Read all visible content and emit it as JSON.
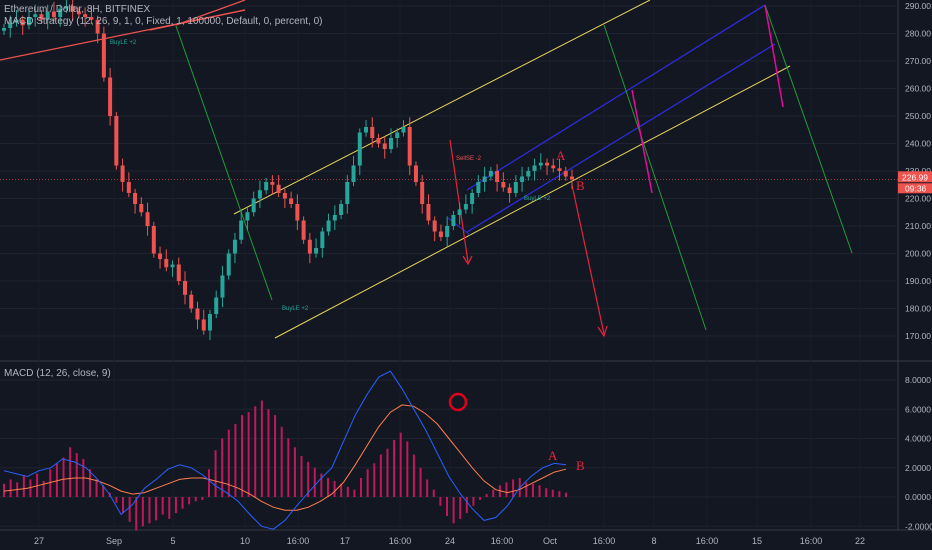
{
  "header": {
    "symbol_line": "Ethereum / Dollar, 8H, BITFINEX",
    "strategy_line": "MACD Strategy (12, 26, 9, 1, 0, Fixed, 1, 100000, Default, 0, percent, 0)",
    "macd_line": "MACD (12, 26, close, 9)"
  },
  "price_badges": {
    "last_price": "226.99",
    "countdown": "09:36"
  },
  "chart_data": [
    {
      "type": "candlestick",
      "title": "Ethereum / Dollar, 8H, BITFINEX",
      "y_ticks": [
        "290.00",
        "280.00",
        "270.00",
        "260.00",
        "250.00",
        "240.00",
        "230.00",
        "220.00",
        "210.00",
        "200.00",
        "190.00",
        "180.00",
        "170.00"
      ],
      "x_ticks": [
        "27",
        "Sep",
        "5",
        "10",
        "16:00",
        "17",
        "16:00",
        "24",
        "16:00",
        "Oct",
        "16:00",
        "8",
        "16:00",
        "15",
        "16:00",
        "22"
      ],
      "ylim": [
        165,
        292
      ],
      "close_series": [
        282,
        284,
        285,
        283,
        286,
        287,
        285,
        288,
        286,
        289,
        290,
        288,
        287,
        286,
        285,
        280,
        264,
        250,
        232,
        226,
        222,
        218,
        215,
        210,
        200,
        198,
        195,
        196,
        190,
        185,
        180,
        176,
        172,
        178,
        184,
        192,
        200,
        205,
        212,
        215,
        220,
        223,
        226,
        225,
        222,
        220,
        218,
        212,
        205,
        200,
        202,
        208,
        212,
        214,
        218,
        226,
        232,
        244,
        246,
        242,
        240,
        238,
        242,
        244,
        246,
        232,
        226,
        218,
        212,
        208,
        206,
        210,
        214,
        216,
        218,
        222,
        226,
        228,
        230,
        226,
        224,
        222,
        226,
        228,
        230,
        232,
        233,
        232,
        231,
        230,
        228,
        226.99
      ],
      "annotations": {
        "labels": [
          "A",
          "B",
          "A",
          "B"
        ],
        "markers": [
          "BuyLE +2",
          "BuyLE +2",
          "SellSE -2",
          "BuyLE +2"
        ]
      },
      "colors": {
        "up": "#26a69a",
        "down": "#ef5350",
        "channel": "#e8d35a",
        "blue_channel": "#2d2ee6",
        "green": "#1e9e3a",
        "magenta": "#e60a9c",
        "red_arrow": "#e8233b"
      }
    },
    {
      "type": "bar+line",
      "title": "MACD (12, 26, close, 9)",
      "y_ticks": [
        "8.0000",
        "6.0000",
        "4.0000",
        "2.0000",
        "0.0000",
        "-2.0000"
      ],
      "ylim": [
        -2.4,
        8.8
      ],
      "histogram": [
        0.9,
        1.2,
        1.0,
        1.5,
        1.2,
        1.6,
        1.1,
        1.9,
        2.3,
        2.7,
        3.4,
        3.0,
        2.6,
        1.9,
        1.2,
        0.8,
        0.3,
        -0.4,
        -1.1,
        -1.7,
        -2.3,
        -2.0,
        -1.8,
        -1.6,
        -1.2,
        -1.5,
        -1.1,
        -0.8,
        -0.5,
        -0.3,
        -0.2,
        1.9,
        3.2,
        4.0,
        4.6,
        5.0,
        5.6,
        5.8,
        6.2,
        6.6,
        6.0,
        5.6,
        4.8,
        4.0,
        3.4,
        2.8,
        2.4,
        2.0,
        1.6,
        1.3,
        1.1,
        0.9,
        0.7,
        0.5,
        1.3,
        1.9,
        2.3,
        2.9,
        3.3,
        3.9,
        4.4,
        3.8,
        2.9,
        2.0,
        1.2,
        0.5,
        -0.6,
        -1.3,
        -1.8,
        -1.5,
        -1.1,
        -0.6,
        -0.2,
        0.2,
        0.5,
        0.8,
        1.0,
        1.2,
        1.3,
        1.0,
        0.9,
        0.8,
        0.6,
        0.5,
        0.4,
        0.3
      ],
      "macd": [
        1.8,
        1.6,
        1.4,
        1.8,
        2.0,
        2.6,
        2.4,
        2.0,
        1.2,
        0.2,
        -1.2,
        -0.5,
        0.6,
        1.2,
        1.9,
        2.2,
        2.0,
        1.5,
        0.8,
        0.3,
        -0.3,
        -1.2,
        -2.0,
        -2.2,
        -1.6,
        -0.6,
        0.3,
        1.2,
        2.0,
        3.8,
        5.6,
        7.0,
        8.2,
        8.6,
        7.4,
        6.0,
        4.6,
        3.0,
        1.4,
        0.2,
        -0.8,
        -1.6,
        -1.4,
        -0.6,
        0.6,
        1.4,
        2.0,
        2.3,
        2.2
      ],
      "signal": [
        0.4,
        0.5,
        0.6,
        0.8,
        1.0,
        1.2,
        1.3,
        1.3,
        1.1,
        0.8,
        0.4,
        0.2,
        0.3,
        0.6,
        0.9,
        1.2,
        1.3,
        1.3,
        1.1,
        0.9,
        0.6,
        0.2,
        -0.3,
        -0.7,
        -0.9,
        -0.9,
        -0.7,
        -0.3,
        0.2,
        1.0,
        2.2,
        3.5,
        4.8,
        5.8,
        6.3,
        6.2,
        5.7,
        5.0,
        4.0,
        3.0,
        2.0,
        1.1,
        0.5,
        0.3,
        0.5,
        0.9,
        1.3,
        1.7,
        1.9
      ],
      "annotations": [
        "A",
        "B"
      ],
      "colors": {
        "hist": "#c2185b",
        "macd": "#2962ff",
        "signal": "#ff7f50",
        "circle": "#e0001b"
      }
    }
  ]
}
